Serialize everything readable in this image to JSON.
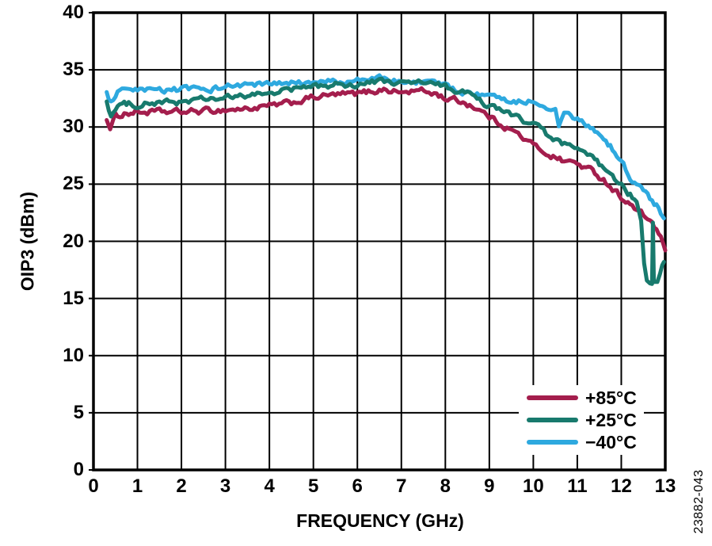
{
  "figure": {
    "watermark": "23882-043",
    "background": "#ffffff",
    "grid_color": "#000000",
    "text_color": "#000000"
  },
  "chart_data": {
    "type": "line",
    "title": "",
    "xlabel": "FREQUENCY (GHz)",
    "ylabel": "OIP3 (dBm)",
    "xlim": [
      0,
      13
    ],
    "ylim": [
      0,
      40
    ],
    "x_ticks": [
      0,
      1,
      2,
      3,
      4,
      5,
      6,
      7,
      8,
      9,
      10,
      11,
      12,
      13
    ],
    "y_ticks": [
      0,
      5,
      10,
      15,
      20,
      25,
      30,
      35,
      40
    ],
    "grid": true,
    "legend_position": "bottom-right",
    "noise_amplitude_dbm": 0.5,
    "draw_order": [
      0,
      2,
      1
    ],
    "series": [
      {
        "name": "+85°C",
        "color": "#A41E4D",
        "points": [
          [
            0.3,
            30.8
          ],
          [
            0.38,
            29.8
          ],
          [
            0.5,
            30.9
          ],
          [
            0.7,
            31.2
          ],
          [
            1.0,
            31.3
          ],
          [
            1.5,
            31.3
          ],
          [
            2.0,
            31.3
          ],
          [
            2.5,
            31.4
          ],
          [
            3.0,
            31.5
          ],
          [
            3.5,
            31.6
          ],
          [
            4.0,
            31.8
          ],
          [
            4.5,
            32.1
          ],
          [
            5.0,
            32.6
          ],
          [
            5.5,
            32.8
          ],
          [
            6.0,
            32.9
          ],
          [
            6.3,
            33.1
          ],
          [
            6.6,
            33.3
          ],
          [
            7.0,
            33.0
          ],
          [
            7.4,
            33.2
          ],
          [
            7.8,
            32.9
          ],
          [
            8.0,
            32.5
          ],
          [
            8.3,
            32.3
          ],
          [
            8.6,
            31.9
          ],
          [
            9.0,
            30.9
          ],
          [
            9.3,
            30.2
          ],
          [
            9.6,
            29.5
          ],
          [
            10.0,
            28.4
          ],
          [
            10.35,
            27.6
          ],
          [
            10.65,
            27.1
          ],
          [
            11.0,
            26.8
          ],
          [
            11.2,
            26.4
          ],
          [
            11.4,
            26.0
          ],
          [
            11.6,
            25.4
          ],
          [
            11.75,
            24.8
          ],
          [
            12.0,
            23.9
          ],
          [
            12.2,
            23.2
          ],
          [
            12.35,
            22.7
          ],
          [
            12.55,
            22.1
          ],
          [
            12.7,
            21.7
          ],
          [
            12.8,
            21.0
          ],
          [
            12.9,
            20.2
          ],
          [
            13.0,
            19.2
          ]
        ]
      },
      {
        "name": "+25°C",
        "color": "#187A6D",
        "points": [
          [
            0.3,
            32.3
          ],
          [
            0.4,
            31.0
          ],
          [
            0.55,
            31.8
          ],
          [
            0.8,
            32.0
          ],
          [
            1.0,
            32.0
          ],
          [
            1.5,
            32.1
          ],
          [
            2.0,
            32.2
          ],
          [
            2.5,
            32.4
          ],
          [
            3.0,
            32.5
          ],
          [
            3.5,
            32.7
          ],
          [
            4.0,
            33.0
          ],
          [
            4.5,
            33.3
          ],
          [
            5.0,
            33.5
          ],
          [
            5.5,
            33.7
          ],
          [
            6.0,
            33.7
          ],
          [
            6.5,
            34.0
          ],
          [
            7.0,
            33.8
          ],
          [
            7.5,
            33.9
          ],
          [
            8.0,
            33.5
          ],
          [
            8.5,
            32.9
          ],
          [
            9.0,
            31.8
          ],
          [
            9.5,
            31.1
          ],
          [
            10.0,
            30.2
          ],
          [
            10.35,
            29.2
          ],
          [
            10.65,
            28.5
          ],
          [
            11.0,
            28.0
          ],
          [
            11.4,
            27.1
          ],
          [
            11.6,
            26.4
          ],
          [
            11.75,
            25.7
          ],
          [
            12.0,
            24.8
          ],
          [
            12.2,
            24.1
          ],
          [
            12.35,
            23.4
          ],
          [
            12.45,
            21.5
          ],
          [
            12.52,
            18.0
          ],
          [
            12.58,
            16.5
          ],
          [
            12.65,
            16.2
          ],
          [
            12.7,
            16.4
          ],
          [
            12.72,
            21.8
          ],
          [
            12.74,
            16.6
          ],
          [
            12.82,
            16.3
          ],
          [
            12.88,
            17.0
          ],
          [
            12.93,
            17.8
          ],
          [
            12.97,
            18.2
          ]
        ]
      },
      {
        "name": "−40°C",
        "color": "#2EA9DF",
        "points": [
          [
            0.3,
            32.9
          ],
          [
            0.4,
            32.1
          ],
          [
            0.55,
            33.0
          ],
          [
            0.8,
            33.1
          ],
          [
            1.0,
            33.1
          ],
          [
            1.5,
            33.2
          ],
          [
            2.0,
            33.3
          ],
          [
            2.5,
            33.3
          ],
          [
            3.0,
            33.5
          ],
          [
            3.5,
            33.7
          ],
          [
            4.0,
            33.7
          ],
          [
            4.5,
            33.8
          ],
          [
            5.0,
            33.8
          ],
          [
            5.5,
            34.0
          ],
          [
            6.0,
            34.0
          ],
          [
            6.5,
            34.3
          ],
          [
            7.0,
            33.9
          ],
          [
            7.5,
            34.0
          ],
          [
            7.8,
            33.8
          ],
          [
            8.0,
            33.5
          ],
          [
            8.5,
            33.0
          ],
          [
            9.0,
            32.6
          ],
          [
            9.5,
            32.3
          ],
          [
            10.0,
            32.3
          ],
          [
            10.3,
            31.9
          ],
          [
            10.5,
            31.4
          ],
          [
            10.58,
            30.1
          ],
          [
            10.7,
            31.0
          ],
          [
            11.0,
            30.6
          ],
          [
            11.2,
            30.2
          ],
          [
            11.4,
            29.6
          ],
          [
            11.6,
            29.0
          ],
          [
            11.75,
            28.3
          ],
          [
            11.9,
            27.6
          ],
          [
            12.0,
            27.0
          ],
          [
            12.1,
            26.3
          ],
          [
            12.2,
            25.6
          ],
          [
            12.35,
            24.9
          ],
          [
            12.5,
            24.4
          ],
          [
            12.6,
            24.1
          ],
          [
            12.7,
            23.6
          ],
          [
            12.8,
            23.1
          ],
          [
            12.9,
            22.5
          ],
          [
            12.97,
            22.0
          ]
        ]
      }
    ]
  }
}
